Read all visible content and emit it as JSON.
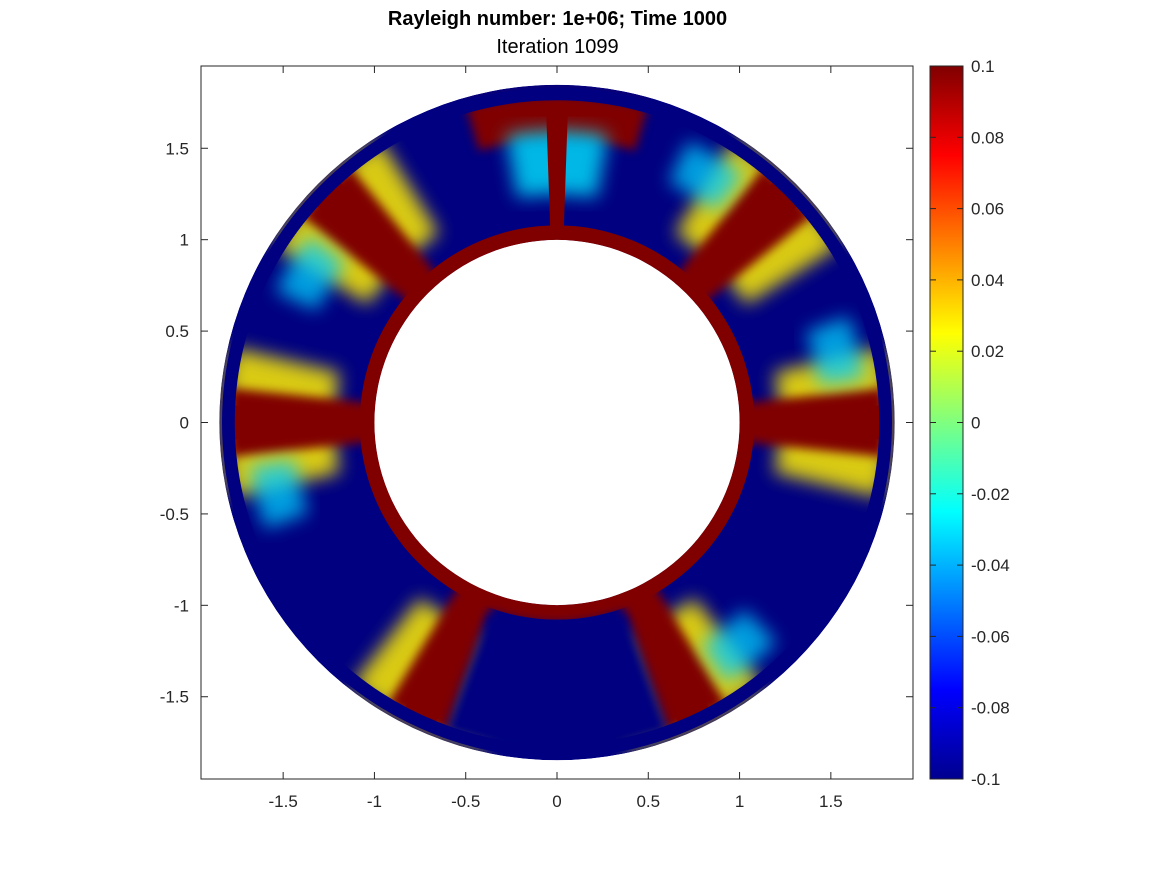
{
  "chart_data": {
    "type": "heatmap",
    "title": "Rayleigh number: 1e+06; Time 1000",
    "subtitle": "Iteration 1099",
    "xlabel": "",
    "ylabel": "",
    "xlim": [
      -1.95,
      1.95
    ],
    "ylim": [
      -1.95,
      1.95
    ],
    "xticks": [
      -1.5,
      -1,
      -0.5,
      0,
      0.5,
      1,
      1.5
    ],
    "yticks": [
      1.5,
      1,
      0.5,
      0,
      -0.5,
      -1,
      -1.5
    ],
    "xtick_labels": [
      "-1.5",
      "-1",
      "-0.5",
      "0",
      "0.5",
      "1",
      "1.5"
    ],
    "ytick_labels": [
      "1.5",
      "1",
      "0.5",
      "0",
      "-0.5",
      "-1",
      "-1.5"
    ],
    "domain": {
      "shape": "annulus",
      "inner_radius": 1.0,
      "outer_radius": 1.85
    },
    "colormap": "jet",
    "clim": [
      -0.1,
      0.1
    ],
    "colorbar": {
      "ticks": [
        0.1,
        0.08,
        0.06,
        0.04,
        0.02,
        0,
        -0.02,
        -0.04,
        -0.06,
        -0.08,
        -0.1
      ],
      "tick_labels": [
        "0.1",
        "0.08",
        "0.06",
        "0.04",
        "0.02",
        "0",
        "-0.02",
        "-0.04",
        "-0.06",
        "-0.08",
        "-0.1"
      ]
    },
    "plumes": [
      {
        "angle": 90,
        "kind": "cap",
        "value": 0.1
      },
      {
        "angle": 45,
        "kind": "hot-sheet",
        "value": 0.1
      },
      {
        "angle": 135,
        "kind": "hot-sheet",
        "value": 0.1
      },
      {
        "angle": 0,
        "kind": "hot-sheet",
        "value": 0.1
      },
      {
        "angle": 180,
        "kind": "hot-sheet",
        "value": 0.1
      },
      {
        "angle": 245,
        "kind": "hot-sheet",
        "value": 0.1
      },
      {
        "angle": 295,
        "kind": "hot-sheet",
        "value": 0.1
      },
      {
        "angle": 270,
        "kind": "cold-core",
        "value": -0.1
      }
    ]
  }
}
